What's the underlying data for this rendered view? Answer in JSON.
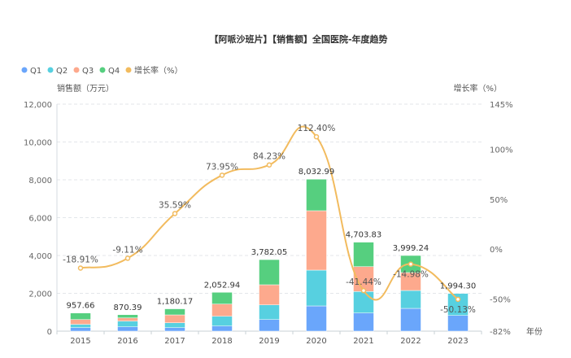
{
  "chart_data": {
    "type": "bar+line",
    "title": "【阿哌沙班片】【销售额】全国医院-年度趋势",
    "legend_position": "top-left",
    "ylabel": "销售额（万元）",
    "y2label": "增长率（%）",
    "xlabel": "年份",
    "ylim": [
      0,
      12000
    ],
    "y2lim": [
      -82,
      145
    ],
    "yticks": [
      "0",
      "2,000",
      "4,000",
      "6,000",
      "8,000",
      "10,000",
      "12,000"
    ],
    "y2ticks": [
      {
        "value": 145,
        "label": "145%"
      },
      {
        "value": 100,
        "label": "100%"
      },
      {
        "value": 50,
        "label": "50%"
      },
      {
        "value": 0,
        "label": "0%"
      },
      {
        "value": -50,
        "label": "-50%"
      },
      {
        "value": -82,
        "label": "-82%"
      }
    ],
    "grid": true,
    "categories": [
      "2015",
      "2016",
      "2017",
      "2018",
      "2019",
      "2020",
      "2021",
      "2022",
      "2023"
    ],
    "series": [
      {
        "name": "Q1",
        "type": "bar",
        "stack": true,
        "color": "#6aa6fb",
        "values": [
          185,
          228,
          185,
          271,
          615,
          1333,
          959,
          1204,
          830
        ]
      },
      {
        "name": "Q2",
        "type": "bar",
        "stack": true,
        "color": "#57d0e0",
        "values": [
          175,
          302,
          258,
          516,
          774,
          1893,
          1135,
          946,
          1164
        ]
      },
      {
        "name": "Q3",
        "type": "bar",
        "stack": true,
        "color": "#fda98d",
        "values": [
          255,
          170,
          417,
          645,
          1063,
          3140,
          1317,
          947,
          0
        ]
      },
      {
        "name": "Q4",
        "type": "bar",
        "stack": true,
        "color": "#56cf7f",
        "values": [
          343,
          170,
          320,
          621,
          1330,
          1667,
          1293,
          902,
          0
        ]
      },
      {
        "name": "增长率（%）",
        "type": "line",
        "axis": "right",
        "color": "#f2bb5e",
        "values": [
          -18.91,
          -9.11,
          35.59,
          73.95,
          84.23,
          112.4,
          -41.44,
          -14.98,
          -50.13
        ]
      }
    ],
    "totals": [
      "957.66",
      "870.39",
      "1,180.17",
      "2,052.94",
      "3,782.05",
      "8,032.99",
      "4,703.83",
      "3,999.24",
      "1,994.30"
    ],
    "growth_labels": [
      "-18.91%",
      "-9.11%",
      "35.59%",
      "73.95%",
      "84.23%",
      "112.40%",
      "-41.44%",
      "-14.98%",
      "-50.13%"
    ]
  }
}
